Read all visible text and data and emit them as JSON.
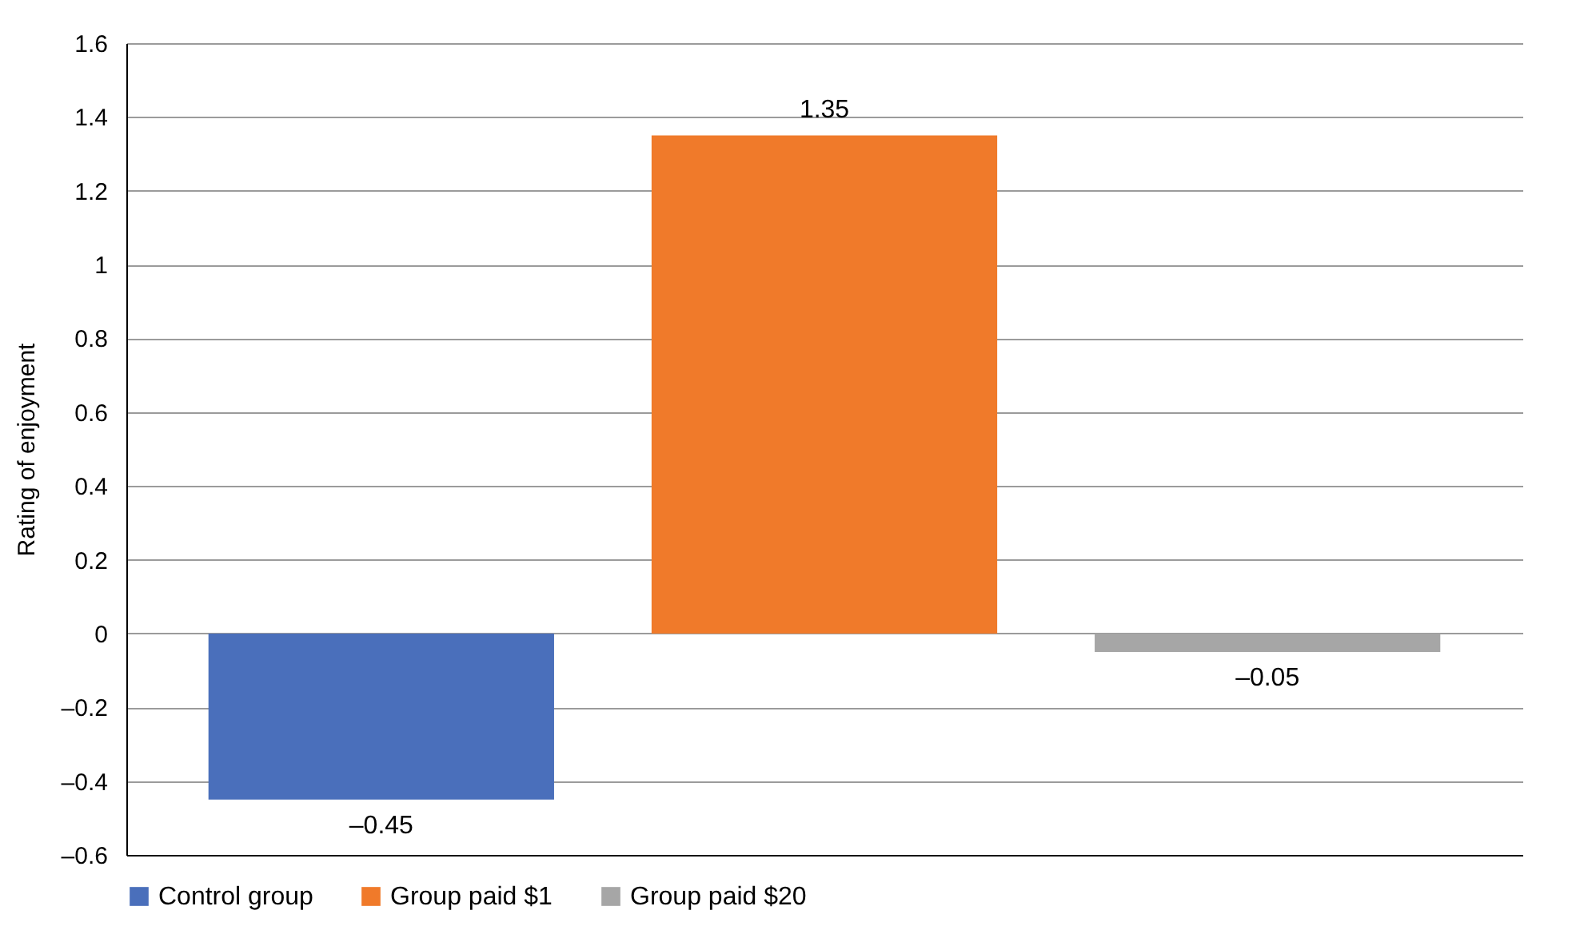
{
  "chart_data": {
    "type": "bar",
    "ylabel": "Rating of enjoyment",
    "categories": [
      null
    ],
    "series": [
      {
        "name": "Control group",
        "color": "#4a6fbb",
        "values": [
          -0.45
        ],
        "value_labels": [
          "–0.45"
        ]
      },
      {
        "name": "Group paid $1",
        "color": "#f07a2a",
        "values": [
          1.35
        ],
        "value_labels": [
          "1.35"
        ]
      },
      {
        "name": "Group paid $20",
        "color": "#a6a6a6",
        "values": [
          -0.05
        ],
        "value_labels": [
          "–0.05"
        ]
      }
    ],
    "ylim": [
      -0.6,
      1.6
    ],
    "yticks": [
      {
        "value": -0.6,
        "label": "–0.6"
      },
      {
        "value": -0.4,
        "label": "–0.4"
      },
      {
        "value": -0.2,
        "label": "–0.2"
      },
      0,
      0.2,
      0.4,
      0.6,
      0.8,
      1,
      1.2,
      1.4,
      1.6
    ],
    "grid": "y",
    "legend": "bottom",
    "tick_labels": "y"
  }
}
